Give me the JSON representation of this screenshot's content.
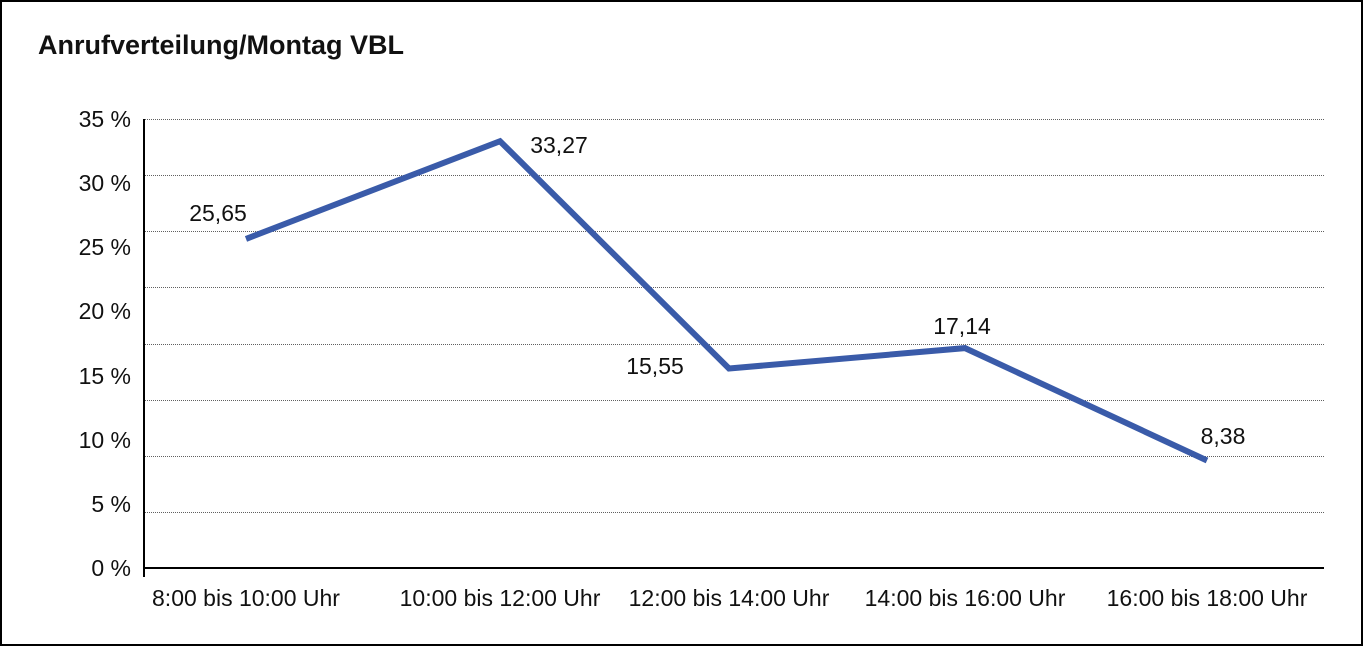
{
  "chart_data": {
    "type": "line",
    "title": "Anrufverteilung/Montag VBL",
    "categories": [
      "8:00 bis 10:00 Uhr",
      "10:00 bis 12:00 Uhr",
      "12:00 bis 14:00 Uhr",
      "14:00 bis 16:00 Uhr",
      "16:00 bis 18:00 Uhr"
    ],
    "values": [
      25.65,
      33.27,
      15.55,
      17.14,
      8.38
    ],
    "point_labels": [
      "25,65",
      "33,27",
      "15,55",
      "17,14",
      "8,38"
    ],
    "ytick_labels": [
      "35 %",
      "30 %",
      "25 %",
      "20 %",
      "15 %",
      "10 %",
      "5 %",
      "0 %"
    ],
    "ylim": [
      0,
      35
    ],
    "xlabel": "",
    "ylabel": "",
    "legend_position": "none",
    "grid": "horizontal-dotted-8-intervals",
    "colors": {
      "line": "#3a5ba9",
      "axis": "#000000",
      "gridline": "#606060",
      "text": "#111111",
      "background": "#ffffff"
    }
  }
}
